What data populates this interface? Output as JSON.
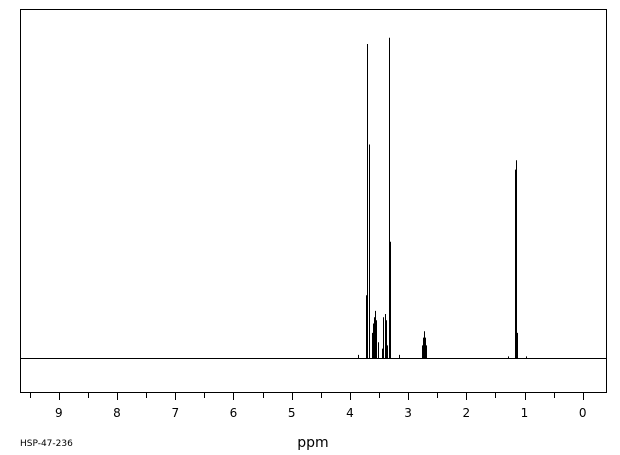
{
  "chart_data": {
    "type": "line",
    "xlabel": "ppm",
    "ylabel": "",
    "title": "",
    "xlim": [
      9.65,
      -0.4
    ],
    "x_reversed": true,
    "ticks": [
      "9",
      "8",
      "7",
      "6",
      "5",
      "4",
      "3",
      "2",
      "1",
      "0"
    ],
    "tick_values": [
      9,
      8,
      7,
      6,
      5,
      4,
      3,
      2,
      1,
      0
    ],
    "minor_tick_step": 0.5,
    "grid": false,
    "legend": "none",
    "code_label": "HSP-47-236",
    "color": "#000000",
    "peaks": [
      {
        "ppm": 3.855,
        "height": 0.01
      },
      {
        "ppm": 3.72,
        "height": 0.2
      },
      {
        "ppm": 3.7,
        "height": 1.0
      },
      {
        "ppm": 3.68,
        "height": 0.68
      },
      {
        "ppm": 3.625,
        "height": 0.08
      },
      {
        "ppm": 3.605,
        "height": 0.11
      },
      {
        "ppm": 3.585,
        "height": 0.13
      },
      {
        "ppm": 3.565,
        "height": 0.15
      },
      {
        "ppm": 3.545,
        "height": 0.12
      },
      {
        "ppm": 3.525,
        "height": 0.05
      },
      {
        "ppm": 3.445,
        "height": 0.03
      },
      {
        "ppm": 3.425,
        "height": 0.13
      },
      {
        "ppm": 3.405,
        "height": 0.14
      },
      {
        "ppm": 3.385,
        "height": 0.12
      },
      {
        "ppm": 3.365,
        "height": 0.04
      },
      {
        "ppm": 3.335,
        "height": 0.36
      },
      {
        "ppm": 3.32,
        "height": 1.02
      },
      {
        "ppm": 3.305,
        "height": 0.37
      },
      {
        "ppm": 3.15,
        "height": 0.01
      },
      {
        "ppm": 2.755,
        "height": 0.04
      },
      {
        "ppm": 2.74,
        "height": 0.065
      },
      {
        "ppm": 2.725,
        "height": 0.085
      },
      {
        "ppm": 2.71,
        "height": 0.065
      },
      {
        "ppm": 2.695,
        "height": 0.04
      },
      {
        "ppm": 1.285,
        "height": 0.005
      },
      {
        "ppm": 1.16,
        "height": 0.6
      },
      {
        "ppm": 1.145,
        "height": 0.63
      },
      {
        "ppm": 1.13,
        "height": 0.08
      },
      {
        "ppm": 0.98,
        "height": 0.005
      }
    ]
  }
}
